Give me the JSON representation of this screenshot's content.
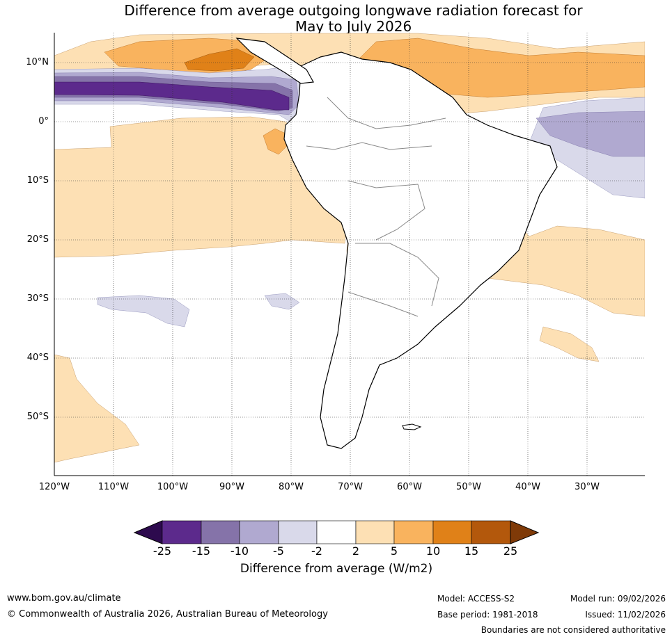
{
  "title": {
    "line1": "Difference from average outgoing longwave radiation forecast for",
    "line2": "May to July 2026"
  },
  "map": {
    "lat_labels": [
      "10°N",
      "0°",
      "10°S",
      "20°S",
      "30°S",
      "40°S",
      "50°S"
    ],
    "lon_labels": [
      "120°W",
      "110°W",
      "100°W",
      "90°W",
      "80°W",
      "70°W",
      "60°W",
      "50°W",
      "40°W",
      "30°W"
    ]
  },
  "legend": {
    "ticks": [
      "-25",
      "-15",
      "-10",
      "-5",
      "-2",
      "2",
      "5",
      "10",
      "15",
      "25"
    ],
    "label": "Difference from average (W/m2)",
    "colors": [
      "#2d0a4e",
      "#5c2a8c",
      "#8573a9",
      "#b0a9d0",
      "#d9d9ea",
      "#ffffff",
      "#fde0b4",
      "#f9b35e",
      "#e08118",
      "#b3580c",
      "#7f3a08"
    ]
  },
  "footer": {
    "website": "www.bom.gov.au/climate",
    "copyright": "© Commonwealth of Australia 2026, Australian Bureau of Meteorology",
    "model": "Model: ACCESS-S2",
    "base_period": "Base period: 1981-2018",
    "model_run": "Model run: 09/02/2026",
    "issued": "Issued: 11/02/2026",
    "disclaimer": "Boundaries are not considered authoritative"
  }
}
